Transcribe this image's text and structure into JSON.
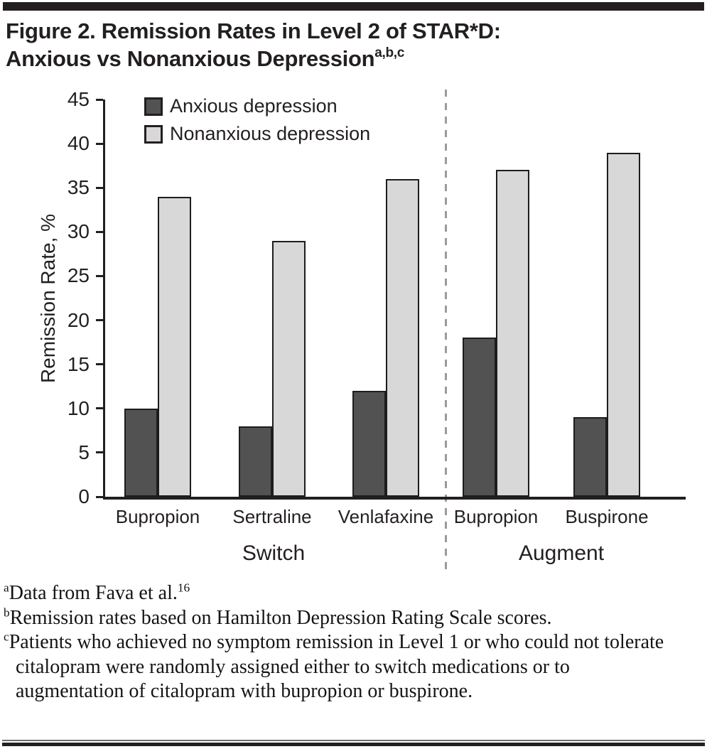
{
  "figure": {
    "title_line1": "Figure 2. Remission Rates in Level 2 of STAR*D:",
    "title_line2": "Anxious vs Nonanxious Depression",
    "title_superscript": "a,b,c"
  },
  "chart_data": {
    "type": "bar",
    "title": "Figure 2. Remission Rates in Level 2 of STAR*D: Anxious vs Nonanxious Depression",
    "ylabel": "Remission Rate, %",
    "ylim": [
      0,
      45
    ],
    "ytick_step": 5,
    "grid": false,
    "legend_position": "top-left",
    "categories": [
      "Bupropion",
      "Sertraline",
      "Venlafaxine",
      "Bupropion",
      "Buspirone"
    ],
    "series": [
      {
        "name": "Anxious depression",
        "color": "#525252",
        "values": [
          10,
          8,
          12,
          18,
          9
        ]
      },
      {
        "name": "Nonanxious depression",
        "color": "#d8d8d8",
        "values": [
          34,
          29,
          36,
          37,
          39
        ]
      }
    ],
    "groups": [
      {
        "label": "Switch",
        "category_indexes": [
          0,
          1,
          2
        ]
      },
      {
        "label": "Augment",
        "category_indexes": [
          3,
          4
        ]
      }
    ]
  },
  "footnotes": [
    {
      "marker": "a",
      "text": "Data from Fava et al.",
      "sup_after": "16"
    },
    {
      "marker": "b",
      "text": "Remission rates based on Hamilton Depression Rating Scale scores.",
      "sup_after": ""
    },
    {
      "marker": "c",
      "text": "Patients who achieved no symptom remission in Level 1 or who could not tolerate citalopram were randomly assigned either to switch medications or to augmentation of citalopram with bupropion or buspirone.",
      "sup_after": ""
    }
  ]
}
